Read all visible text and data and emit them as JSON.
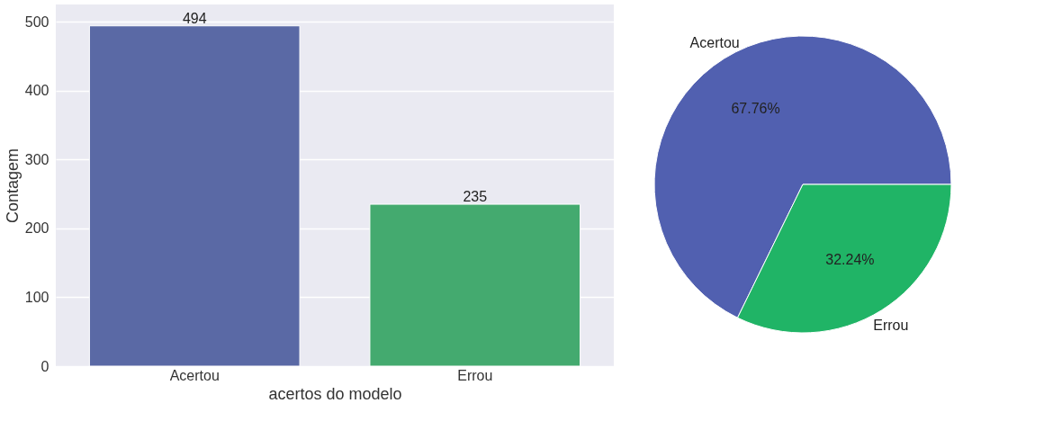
{
  "chart_data": [
    {
      "type": "bar",
      "xlabel": "acertos do modelo",
      "ylabel": "Contagem",
      "categories": [
        "Acertou",
        "Errou"
      ],
      "values": [
        494,
        235
      ],
      "colors": [
        "#5a69a5",
        "#44aa6f"
      ],
      "ylim": [
        0,
        525
      ],
      "yticks": [
        0,
        100,
        200,
        300,
        400,
        500
      ],
      "grid": "y",
      "data_labels": true
    },
    {
      "type": "pie",
      "categories": [
        "Acertou",
        "Errou"
      ],
      "values": [
        67.76,
        32.24
      ],
      "colors": [
        "#5160b0",
        "#20b466"
      ],
      "value_labels": [
        "67.76%",
        "32.24%"
      ]
    }
  ]
}
